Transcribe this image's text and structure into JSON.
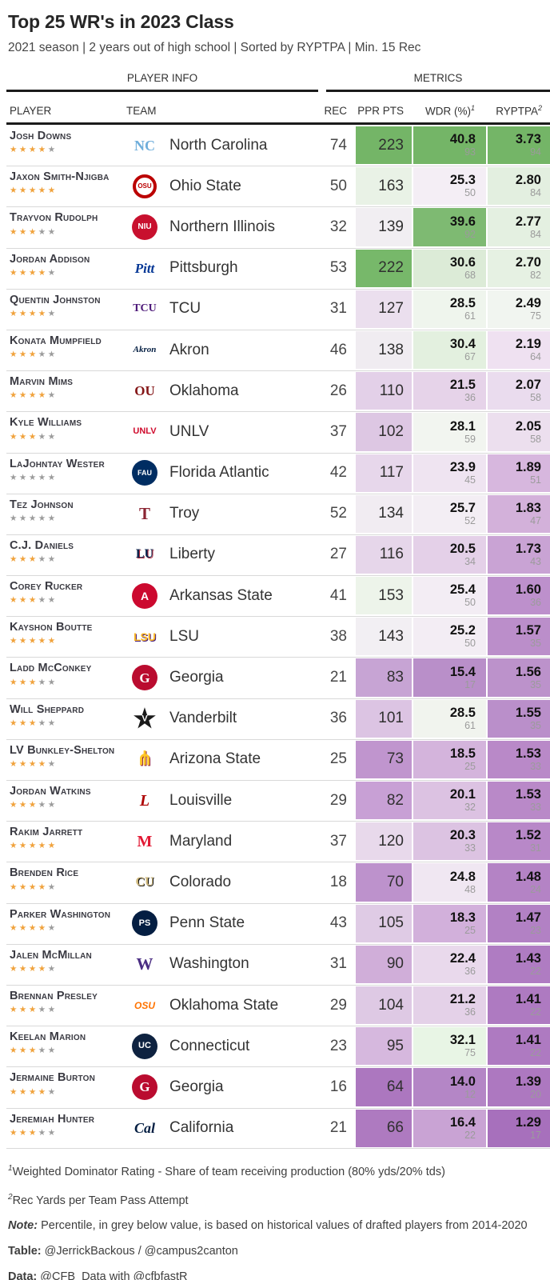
{
  "header": {
    "title": "Top 25 WR's in 2023 Class",
    "subtitle": "2021 season | 2 years out of high school | Sorted by RYPTPA | Min. 15 Rec"
  },
  "table": {
    "spanners": {
      "left": "PLAYER INFO",
      "right": "METRICS"
    },
    "columns": {
      "player": "PLAYER",
      "team": "TEAM",
      "rec": "REC",
      "ppr": "PPR PTS",
      "wdr": "WDR (%)",
      "wdr_sup": "1",
      "ryptpa": "RYPTPA",
      "ryptpa_sup": "2"
    }
  },
  "palette": {
    "heat_high_green": "#74b567",
    "heat_mid_white": "#f5f2f5",
    "heat_low_purple": "#a770bc",
    "star_filled": "#f0a23c",
    "star_empty": "#9b9b9b",
    "percentile_grey": "#9b9b9b"
  },
  "chart_data": {
    "type": "table",
    "title": "Top 25 WR's in 2023 Class",
    "columns": [
      "PLAYER",
      "TEAM",
      "REC",
      "PPR PTS",
      "WDR (%)",
      "RYPTPA"
    ],
    "rows": [
      {
        "player": "Josh Downs",
        "stars": 4,
        "team": "North Carolina",
        "rec": 74,
        "ppr": 223,
        "wdr": "40.8",
        "wdr_pct": 93,
        "ryptpa": "3.73",
        "ryptpa_pct": 94,
        "logo": {
          "shape": "text",
          "text": "NC",
          "color": "#6FAEDB",
          "size": 18,
          "serif": true
        },
        "cell_colors": {
          "ppr": "#74b567",
          "wdr": "#74b567",
          "ryp": "#74b567"
        }
      },
      {
        "player": "Jaxon Smith-Njigba",
        "stars": 5,
        "team": "Ohio State",
        "rec": 50,
        "ppr": 163,
        "wdr": "25.3",
        "wdr_pct": 50,
        "ryptpa": "2.80",
        "ryptpa_pct": 84,
        "logo": {
          "shape": "ring",
          "text": "OSU",
          "color": "#BB0000",
          "size": 8,
          "dim": 30,
          "border": 4
        },
        "cell_colors": {
          "ppr": "#e9f2e6",
          "wdr": "#f4eef5",
          "ryp": "#e3efe0"
        }
      },
      {
        "player": "Trayvon Rudolph",
        "stars": 3,
        "team": "Northern Illinois",
        "rec": 32,
        "ppr": 139,
        "wdr": "39.6",
        "wdr_pct": 92,
        "ryptpa": "2.77",
        "ryptpa_pct": 84,
        "logo": {
          "shape": "circle",
          "text": "NIU",
          "color": "#C8102E",
          "size": 10,
          "dim": 32
        },
        "cell_colors": {
          "ppr": "#f1eef2",
          "wdr": "#7eba72",
          "ryp": "#e4f0e1"
        }
      },
      {
        "player": "Jordan Addison",
        "stars": 4,
        "team": "Pittsburgh",
        "rec": 53,
        "ppr": 222,
        "wdr": "30.6",
        "wdr_pct": 68,
        "ryptpa": "2.70",
        "ryptpa_pct": 82,
        "logo": {
          "shape": "text",
          "text": "Pitt",
          "color": "#003594",
          "size": 17,
          "serif": true,
          "italic": true
        },
        "cell_colors": {
          "ppr": "#77b86a",
          "wdr": "#dcebd7",
          "ryp": "#e6f1e3"
        }
      },
      {
        "player": "Quentin Johnston",
        "stars": 4,
        "team": "TCU",
        "rec": 31,
        "ppr": 127,
        "wdr": "28.5",
        "wdr_pct": 61,
        "ryptpa": "2.49",
        "ryptpa_pct": 75,
        "logo": {
          "shape": "text",
          "text": "TCU",
          "color": "#4D1979",
          "size": 14,
          "serif": true
        },
        "cell_colors": {
          "ppr": "#ebdfee",
          "wdr": "#eff5ed",
          "ryp": "#f1f5f0"
        }
      },
      {
        "player": "Konata Mumpfield",
        "stars": 3,
        "team": "Akron",
        "rec": 46,
        "ppr": 138,
        "wdr": "30.4",
        "wdr_pct": 67,
        "ryptpa": "2.19",
        "ryptpa_pct": 64,
        "logo": {
          "shape": "text",
          "text": "Akron",
          "color": "#041E42",
          "size": 11,
          "serif": true,
          "italic": true
        },
        "cell_colors": {
          "ppr": "#f0ecf1",
          "wdr": "#e3f0df",
          "ryp": "#efe1f1"
        }
      },
      {
        "player": "Marvin Mims",
        "stars": 4,
        "team": "Oklahoma",
        "rec": 26,
        "ppr": 110,
        "wdr": "21.5",
        "wdr_pct": 36,
        "ryptpa": "2.07",
        "ryptpa_pct": 58,
        "logo": {
          "shape": "text",
          "text": "OU",
          "color": "#841617",
          "size": 17,
          "serif": true
        },
        "cell_colors": {
          "ppr": "#e3d0e8",
          "wdr": "#e6d3e9",
          "ryp": "#eadcee"
        }
      },
      {
        "player": "Kyle Williams",
        "stars": 3,
        "team": "UNLV",
        "rec": 37,
        "ppr": 102,
        "wdr": "28.1",
        "wdr_pct": 59,
        "ryptpa": "2.05",
        "ryptpa_pct": 58,
        "logo": {
          "shape": "text",
          "text": "UNLV",
          "color": "#CF0A2C",
          "size": 11
        },
        "cell_colors": {
          "ppr": "#ddc7e3",
          "wdr": "#f2f5f0",
          "ryp": "#ecdfee"
        }
      },
      {
        "player": "LaJohntay Wester",
        "stars": 0,
        "team": "Florida Atlantic",
        "rec": 42,
        "ppr": 117,
        "wdr": "23.9",
        "wdr_pct": 45,
        "ryptpa": "1.89",
        "ryptpa_pct": 51,
        "logo": {
          "shape": "circle",
          "text": "FAU",
          "color": "#002D62",
          "size": 9,
          "dim": 32
        },
        "cell_colors": {
          "ppr": "#e7d7eb",
          "wdr": "#efe4f1",
          "ryp": "#d7b7de"
        }
      },
      {
        "player": "Tez Johnson",
        "stars": 0,
        "team": "Troy",
        "rec": 52,
        "ppr": 134,
        "wdr": "25.7",
        "wdr_pct": 52,
        "ryptpa": "1.83",
        "ryptpa_pct": 47,
        "logo": {
          "shape": "text",
          "text": "T",
          "color": "#8A2432",
          "size": 21,
          "serif": true
        },
        "cell_colors": {
          "ppr": "#f1ecf2",
          "wdr": "#f3eef4",
          "ryp": "#d3b1da"
        }
      },
      {
        "player": "C.J. Daniels",
        "stars": 3,
        "team": "Liberty",
        "rec": 27,
        "ppr": 116,
        "wdr": "20.5",
        "wdr_pct": 34,
        "ryptpa": "1.73",
        "ryptpa_pct": 43,
        "logo": {
          "shape": "text",
          "text": "LU",
          "color": "#0A254E",
          "size": 16,
          "serif": true,
          "shadow": "1px 1px 0 #A6192E"
        },
        "cell_colors": {
          "ppr": "#e6d6ea",
          "wdr": "#e4d0e8",
          "ryp": "#c9a3d4"
        }
      },
      {
        "player": "Corey Rucker",
        "stars": 3,
        "team": "Arkansas State",
        "rec": 41,
        "ppr": 153,
        "wdr": "25.4",
        "wdr_pct": 50,
        "ryptpa": "1.60",
        "ryptpa_pct": 36,
        "logo": {
          "shape": "circle",
          "text": "A",
          "color": "#CC092F",
          "size": 14,
          "dim": 32
        },
        "cell_colors": {
          "ppr": "#edf4ea",
          "wdr": "#f3edf4",
          "ryp": "#bd90cc"
        }
      },
      {
        "player": "Kayshon Boutte",
        "stars": 5,
        "team": "LSU",
        "rec": 38,
        "ppr": 143,
        "wdr": "25.2",
        "wdr_pct": 50,
        "ryptpa": "1.57",
        "ryptpa_pct": 35,
        "logo": {
          "shape": "text",
          "text": "LSU",
          "color": "#FDB927",
          "size": 14,
          "shadow": "1px 1px 0 #461D7C"
        },
        "cell_colors": {
          "ppr": "#f2eff3",
          "wdr": "#f3edf4",
          "ryp": "#bb8eca"
        }
      },
      {
        "player": "Ladd McConkey",
        "stars": 3,
        "team": "Georgia",
        "rec": 21,
        "ppr": 83,
        "wdr": "15.4",
        "wdr_pct": 17,
        "ryptpa": "1.56",
        "ryptpa_pct": 35,
        "logo": {
          "shape": "circle",
          "text": "G",
          "color": "#BA0C2F",
          "size": 17,
          "dim": 32,
          "serif": true
        },
        "cell_colors": {
          "ppr": "#c7a4d4",
          "wdr": "#b98fc9",
          "ryp": "#bc92cb"
        }
      },
      {
        "player": "Will Sheppard",
        "stars": 3,
        "team": "Vanderbilt",
        "rec": 36,
        "ppr": 101,
        "wdr": "28.5",
        "wdr_pct": 61,
        "ryptpa": "1.55",
        "ryptpa_pct": 35,
        "logo": {
          "shape": "star",
          "text": "V",
          "color": "#1a1a1a",
          "size": 11
        },
        "cell_colors": {
          "ppr": "#dcc4e3",
          "wdr": "#f1f4ee",
          "ryp": "#ba8fca"
        }
      },
      {
        "player": "LV Bunkley-Shelton",
        "stars": 4,
        "team": "Arizona State",
        "rec": 25,
        "ppr": 73,
        "wdr": "18.5",
        "wdr_pct": 25,
        "ryptpa": "1.53",
        "ryptpa_pct": 33,
        "logo": {
          "shape": "text",
          "text": "⋔",
          "color": "#FFC627",
          "size": 24,
          "shadow": "1px 1px 0 #8C1D40"
        },
        "cell_colors": {
          "ppr": "#c095ce",
          "wdr": "#d4b4dc",
          "ryp": "#b989c8"
        }
      },
      {
        "player": "Jordan Watkins",
        "stars": 3,
        "team": "Louisville",
        "rec": 29,
        "ppr": 82,
        "wdr": "20.1",
        "wdr_pct": 32,
        "ryptpa": "1.53",
        "ryptpa_pct": 33,
        "logo": {
          "shape": "text",
          "text": "L",
          "color": "#AD0000",
          "size": 20,
          "serif": true,
          "italic": true
        },
        "cell_colors": {
          "ppr": "#c8a0d5",
          "wdr": "#dcc2e2",
          "ryp": "#b989c8"
        }
      },
      {
        "player": "Rakim Jarrett",
        "stars": 5,
        "team": "Maryland",
        "rec": 37,
        "ppr": 120,
        "wdr": "20.3",
        "wdr_pct": 33,
        "ryptpa": "1.52",
        "ryptpa_pct": 31,
        "logo": {
          "shape": "text",
          "text": "M",
          "color": "#E21833",
          "size": 20,
          "serif": true
        },
        "cell_colors": {
          "ppr": "#e8d9eb",
          "wdr": "#dcc3e2",
          "ryp": "#b888c8"
        }
      },
      {
        "player": "Brenden Rice",
        "stars": 4,
        "team": "Colorado",
        "rec": 18,
        "ppr": 70,
        "wdr": "24.8",
        "wdr_pct": 48,
        "ryptpa": "1.48",
        "ryptpa_pct": 24,
        "logo": {
          "shape": "text",
          "text": "CU",
          "color": "#CFB87C",
          "size": 16,
          "serif": true,
          "shadow": "1px 1px 0 #000000"
        },
        "cell_colors": {
          "ppr": "#bd92cc",
          "wdr": "#f0e7f2",
          "ryp": "#b483c5"
        }
      },
      {
        "player": "Parker Washington",
        "stars": 4,
        "team": "Penn State",
        "rec": 43,
        "ppr": 105,
        "wdr": "18.3",
        "wdr_pct": 25,
        "ryptpa": "1.47",
        "ryptpa_pct": 23,
        "logo": {
          "shape": "circle",
          "text": "PS",
          "color": "#041E42",
          "size": 11,
          "dim": 32
        },
        "cell_colors": {
          "ppr": "#dfcbe5",
          "wdr": "#d2b0db",
          "ryp": "#b281c4"
        }
      },
      {
        "player": "Jalen McMillan",
        "stars": 4,
        "team": "Washington",
        "rec": 31,
        "ppr": 90,
        "wdr": "22.4",
        "wdr_pct": 36,
        "ryptpa": "1.43",
        "ryptpa_pct": 22,
        "logo": {
          "shape": "text",
          "text": "W",
          "color": "#4B2E83",
          "size": 21,
          "serif": true
        },
        "cell_colors": {
          "ppr": "#d0aed9",
          "wdr": "#e9d9ec",
          "ryp": "#af7cc2"
        }
      },
      {
        "player": "Brennan Presley",
        "stars": 3,
        "team": "Oklahoma State",
        "rec": 29,
        "ppr": 104,
        "wdr": "21.2",
        "wdr_pct": 36,
        "ryptpa": "1.41",
        "ryptpa_pct": 22,
        "logo": {
          "shape": "text",
          "text": "OSU",
          "color": "#FF7300",
          "size": 12,
          "italic": true
        },
        "cell_colors": {
          "ppr": "#dec9e4",
          "wdr": "#e4d1e8",
          "ryp": "#ae7ac1"
        }
      },
      {
        "player": "Keelan Marion",
        "stars": 3,
        "team": "Connecticut",
        "rec": 23,
        "ppr": 95,
        "wdr": "32.1",
        "wdr_pct": 75,
        "ryptpa": "1.41",
        "ryptpa_pct": 22,
        "logo": {
          "shape": "circle",
          "text": "UC",
          "color": "#0E2240",
          "size": 11,
          "dim": 32
        },
        "cell_colors": {
          "ppr": "#d6b8de",
          "wdr": "#e8f5e5",
          "ryp": "#ae7ac1"
        }
      },
      {
        "player": "Jermaine Burton",
        "stars": 4,
        "team": "Georgia",
        "rec": 16,
        "ppr": 64,
        "wdr": "14.0",
        "wdr_pct": 12,
        "ryptpa": "1.39",
        "ryptpa_pct": 20,
        "logo": {
          "shape": "circle",
          "text": "G",
          "color": "#BA0C2F",
          "size": 17,
          "dim": 32,
          "serif": true
        },
        "cell_colors": {
          "ppr": "#ac77bf",
          "wdr": "#b486c6",
          "ryp": "#ad78c0"
        }
      },
      {
        "player": "Jeremiah Hunter",
        "stars": 3,
        "team": "California",
        "rec": 21,
        "ppr": 66,
        "wdr": "16.4",
        "wdr_pct": 22,
        "ryptpa": "1.29",
        "ryptpa_pct": 17,
        "logo": {
          "shape": "text",
          "text": "Cal",
          "color": "#041E42",
          "size": 18,
          "serif": true,
          "italic": true
        },
        "cell_colors": {
          "ppr": "#ae7ac0",
          "wdr": "#c9a3d4",
          "ryp": "#a770bc"
        }
      }
    ]
  },
  "footer": {
    "fn1_sup": "1",
    "fn1": "Weighted Dominator Rating - Share of team receiving production (80% yds/20% tds)",
    "fn2_sup": "2",
    "fn2": "Rec Yards per Team Pass Attempt",
    "note_label": "Note:",
    "note": " Percentile, in grey below value, is based on historical values of drafted players from 2014-2020",
    "table_label": "Table:",
    "table_credit": " @JerrickBackous / @campus2canton",
    "data_label": "Data:",
    "data_credit": " @CFB_Data with @cfbfastR"
  }
}
